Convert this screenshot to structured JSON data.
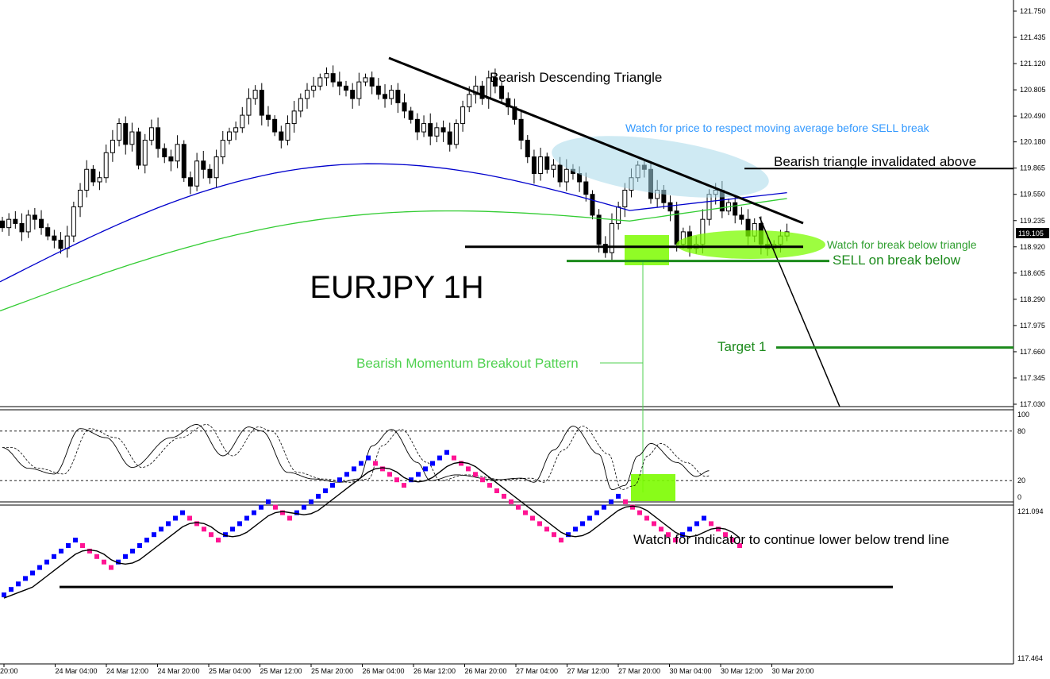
{
  "chart_data": [
    {
      "type": "candlestick",
      "panel": "price",
      "title": "EURJPY 1H",
      "symbol": "EURJPY",
      "timeframe": "1H",
      "ylim": [
        117.03,
        121.75
      ],
      "y_ticks": [
        "121.750",
        "121.435",
        "121.120",
        "120.805",
        "120.490",
        "120.180",
        "119.865",
        "119.550",
        "119.235",
        "118.920",
        "118.605",
        "118.290",
        "117.975",
        "117.660",
        "117.345",
        "117.030"
      ],
      "current_price": "119.105",
      "x_ticks": [
        "20:00",
        "24 Mar 04:00",
        "24 Mar 12:00",
        "24 Mar 20:00",
        "25 Mar 04:00",
        "25 Mar 12:00",
        "25 Mar 20:00",
        "26 Mar 04:00",
        "26 Mar 12:00",
        "26 Mar 20:00",
        "27 Mar 04:00",
        "27 Mar 12:00",
        "27 Mar 20:00",
        "30 Mar 04:00",
        "30 Mar 12:00",
        "30 Mar 20:00"
      ],
      "close": [
        119.15,
        119.25,
        119.2,
        119.1,
        119.3,
        119.25,
        119.15,
        119.05,
        119.0,
        118.9,
        119.05,
        119.4,
        119.6,
        119.85,
        119.7,
        119.75,
        120.05,
        120.2,
        120.4,
        120.15,
        120.3,
        119.9,
        120.2,
        120.35,
        120.1,
        120.0,
        119.95,
        120.15,
        119.75,
        119.65,
        119.95,
        119.85,
        119.75,
        120.0,
        120.2,
        120.3,
        120.35,
        120.5,
        120.7,
        120.8,
        120.5,
        120.45,
        120.3,
        120.2,
        120.4,
        120.55,
        120.7,
        120.8,
        120.85,
        120.95,
        121.0,
        120.9,
        120.85,
        120.8,
        120.7,
        120.9,
        120.95,
        120.85,
        120.75,
        120.7,
        120.8,
        120.65,
        120.55,
        120.45,
        120.3,
        120.4,
        120.25,
        120.35,
        120.3,
        120.15,
        120.4,
        120.6,
        120.75,
        120.85,
        120.7,
        120.95,
        120.85,
        120.7,
        120.6,
        120.45,
        120.2,
        120.0,
        119.8,
        120.0,
        119.85,
        119.9,
        119.7,
        119.85,
        119.8,
        119.7,
        119.55,
        119.3,
        118.95,
        118.85,
        119.2,
        119.4,
        119.6,
        119.75,
        119.9,
        119.85,
        119.5,
        119.6,
        119.45,
        119.35,
        118.95,
        119.1,
        118.9,
        118.95,
        119.25,
        119.55,
        119.6,
        119.35,
        119.45,
        119.3,
        119.25,
        119.05,
        119.2,
        118.95,
        118.9,
        118.95,
        119.05,
        119.1
      ],
      "annotations": {
        "triangle_label": "Bearish Descending Triangle",
        "ma_note": "Watch for price to respect moving average before SELL break",
        "invalidation_label": "Bearish triangle invalidated above",
        "break_watch_label": "Watch for break below triangle",
        "sell_label": "SELL on break below",
        "target_label": "Target 1",
        "pattern_label": "Bearish Momentum Breakout Pattern"
      },
      "levels": {
        "invalidation": 119.86,
        "triangle_support": 118.92,
        "sell_line": 118.75,
        "target_1": 117.71
      },
      "moving_averages": [
        {
          "color": "#0000cc",
          "start": 118.5,
          "end": 119.57
        },
        {
          "color": "#33cc33",
          "start": 118.15,
          "end": 119.5
        }
      ],
      "colors": {
        "candle": "#000000",
        "support": "#000000",
        "sell": "#1b8a1b",
        "target": "#1b8a1b",
        "ellipse_blue": "#a8d8ea",
        "ellipse_green": "#7cfc00",
        "note_blue": "#3399ff",
        "note_green": "#2e9e2e",
        "pattern": "#4fd14f"
      }
    },
    {
      "type": "line",
      "panel": "stochastic",
      "ylim": [
        0,
        100
      ],
      "y_ticks": [
        "100",
        "80",
        "20",
        "0"
      ],
      "levels": [
        80,
        20
      ],
      "main_line_knots": [
        [
          0,
          60
        ],
        [
          4,
          35
        ],
        [
          8,
          28
        ],
        [
          12,
          83
        ],
        [
          16,
          72
        ],
        [
          20,
          36
        ],
        [
          26,
          72
        ],
        [
          30,
          88
        ],
        [
          34,
          50
        ],
        [
          38,
          85
        ],
        [
          40,
          80
        ],
        [
          44,
          30
        ],
        [
          48,
          22
        ],
        [
          52,
          18
        ],
        [
          55,
          22
        ],
        [
          57,
          62
        ],
        [
          60,
          82
        ],
        [
          64,
          42
        ],
        [
          66,
          20
        ],
        [
          70,
          27
        ],
        [
          76,
          21
        ],
        [
          80,
          23
        ],
        [
          82,
          18
        ],
        [
          85,
          57
        ],
        [
          88,
          86
        ],
        [
          92,
          52
        ],
        [
          94,
          9
        ],
        [
          96,
          14
        ],
        [
          98,
          50
        ],
        [
          100,
          65
        ],
        [
          104,
          42
        ],
        [
          107,
          25
        ],
        [
          109,
          32
        ]
      ],
      "signal_lag": 1.5
    },
    {
      "type": "point_and_figure",
      "panel": "indicator",
      "y_ticks": [
        "121.094",
        "117.464"
      ],
      "ylim": [
        117.464,
        121.094
      ],
      "steps": [
        1,
        1,
        1,
        1,
        1,
        1,
        1,
        1,
        1,
        1,
        1,
        -1,
        -1,
        -1,
        -1,
        -1,
        1,
        1,
        1,
        1,
        1,
        1,
        1,
        1,
        1,
        1,
        -1,
        -1,
        -1,
        -1,
        -1,
        1,
        1,
        1,
        1,
        1,
        1,
        1,
        -1,
        -1,
        -1,
        1,
        1,
        1,
        1,
        1,
        1,
        1,
        1,
        1,
        1,
        1,
        -1,
        -1,
        -1,
        -1,
        -1,
        1,
        1,
        1,
        1,
        1,
        1,
        -1,
        -1,
        -1,
        -1,
        -1,
        -1,
        -1,
        -1,
        -1,
        -1,
        -1,
        -1,
        -1,
        -1,
        -1,
        -1,
        1,
        1,
        1,
        1,
        1,
        1,
        1,
        1,
        -1,
        -1,
        -1,
        -1,
        -1,
        -1,
        -1,
        -1,
        1,
        1,
        1,
        1,
        -1,
        -1,
        -1,
        -1,
        -1
      ],
      "trendline_level": 119.2,
      "note": "Watch for indicator to continue lower below trend line",
      "colors": {
        "up": "#0000ff",
        "down": "#ff1493"
      }
    }
  ]
}
